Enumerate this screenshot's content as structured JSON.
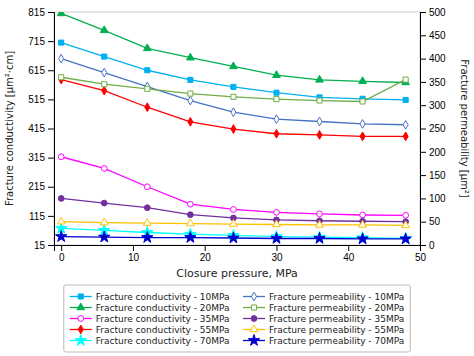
{
  "chart_data": {
    "type": "line",
    "xlabel": "Closure pressure, MPa",
    "ylabel": "Fracture conductivity [μm²·cm]",
    "y2label": "Fracture permeability [μm²]",
    "x": [
      0,
      6,
      12,
      18,
      24,
      30,
      36,
      42,
      48
    ],
    "xlim": [
      -1,
      50
    ],
    "xticks": [
      0,
      10,
      20,
      30,
      40,
      50
    ],
    "ylim": [
      15,
      815
    ],
    "yticks": [
      15,
      115,
      215,
      315,
      415,
      515,
      615,
      715,
      815
    ],
    "y2lim": [
      0,
      500
    ],
    "y2ticks": [
      0,
      50,
      100,
      150,
      200,
      250,
      300,
      350,
      400,
      450,
      500
    ],
    "grid": false,
    "legend": "bottom",
    "series": [
      {
        "name": "Fracture conductivity - 10MPa",
        "color": "#00b0f0",
        "marker": "square",
        "values": [
          710,
          662,
          615,
          582,
          558,
          538,
          522,
          517,
          513
        ]
      },
      {
        "name": "Fracture conductivity - 20MPa",
        "color": "#00b050",
        "marker": "triangle",
        "values": [
          810,
          752,
          690,
          658,
          628,
          598,
          582,
          577,
          573
        ]
      },
      {
        "name": "Fracture conductivity - 35MPa",
        "color": "#ff00ff",
        "marker": "circle-open",
        "values": [
          318,
          278,
          215,
          155,
          137,
          127,
          122,
          118,
          117
        ]
      },
      {
        "name": "Fracture conductivity - 55MPa",
        "color": "#ff0000",
        "marker": "diamond",
        "values": [
          583,
          545,
          488,
          438,
          413,
          397,
          393,
          388,
          388
        ]
      },
      {
        "name": "Fracture conductivity - 70MPa",
        "color": "#00ffff",
        "marker": "star",
        "values": [
          72,
          65,
          58,
          52,
          48,
          44,
          42,
          40,
          38
        ]
      },
      {
        "name": "Fracture permeability - 10MPa",
        "color": "#4472c4",
        "marker": "diamond-open",
        "axis": "y2",
        "values": [
          400,
          370,
          340,
          310,
          285,
          270,
          265,
          260,
          258
        ]
      },
      {
        "name": "Fracture permeability - 20MPa",
        "color": "#70ad47",
        "marker": "square-open",
        "axis": "y2",
        "values": [
          360,
          345,
          335,
          325,
          318,
          313,
          310,
          308,
          355
        ]
      },
      {
        "name": "Fracture permeability - 35MPa",
        "color": "#7030a0",
        "marker": "circle",
        "axis": "y2",
        "values": [
          100,
          90,
          80,
          65,
          58,
          54,
          52,
          51,
          50
        ]
      },
      {
        "name": "Fracture permeability - 55MPa",
        "color": "#ffc000",
        "marker": "triangle-open",
        "axis": "y2",
        "values": [
          50,
          48,
          47,
          46,
          45,
          44,
          43,
          43,
          42
        ]
      },
      {
        "name": "Fracture permeability - 70MPa",
        "color": "#0000cd",
        "marker": "star",
        "axis": "y2",
        "values": [
          18,
          17,
          16,
          16,
          15,
          14,
          14,
          13,
          13
        ]
      }
    ]
  }
}
